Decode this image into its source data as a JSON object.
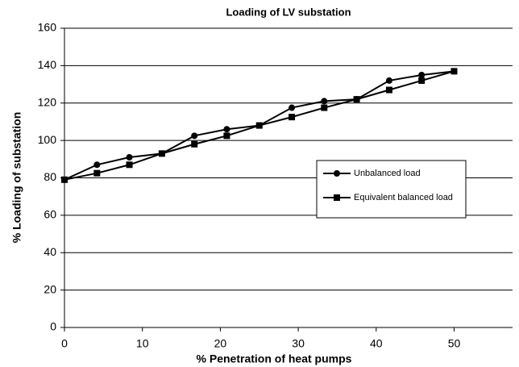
{
  "chart_data": {
    "type": "line",
    "title": "Loading of LV substation",
    "xlabel": "% Penetration of heat pumps",
    "ylabel": "% Loading of substation",
    "x": [
      0,
      4.17,
      8.33,
      12.5,
      16.67,
      20.83,
      25,
      29.17,
      33.33,
      37.5,
      41.67,
      45.83,
      50
    ],
    "series": [
      {
        "name": "Unbalanced load",
        "color": "#000000",
        "marker": "circle",
        "values": [
          79,
          87,
          91,
          93,
          102.5,
          106,
          108,
          117.5,
          121,
          122,
          132,
          135,
          137
        ]
      },
      {
        "name": "Equivalent balanced load",
        "color": "#000000",
        "marker": "square",
        "values": [
          79,
          82.5,
          87,
          93,
          98,
          102.5,
          108,
          112.5,
          117.5,
          122,
          127,
          132,
          137
        ]
      }
    ],
    "xlim": [
      0,
      57.5
    ],
    "xticks": [
      0,
      10,
      20,
      30,
      40,
      50
    ],
    "ylim": [
      0,
      160
    ],
    "yticks": [
      0,
      20,
      40,
      60,
      80,
      100,
      120,
      140,
      160
    ],
    "grid": true,
    "legend": "right"
  }
}
